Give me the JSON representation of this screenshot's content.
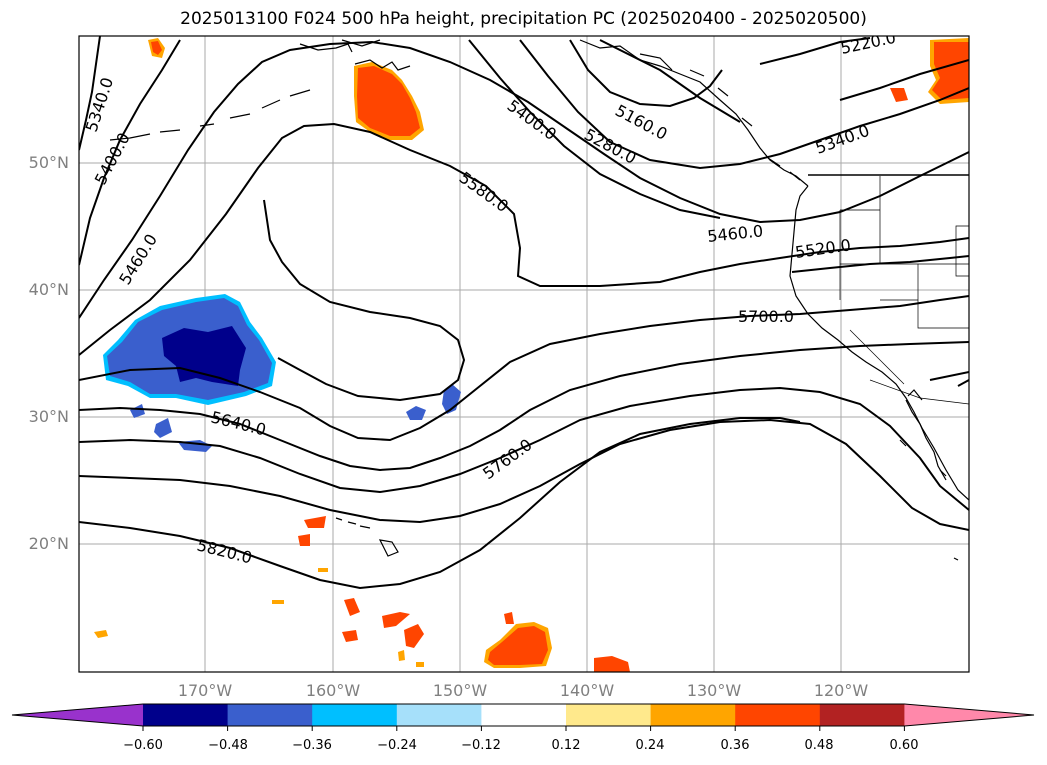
{
  "title": "2025013100 F024 500 hPa height, precipitation PC (2025020400 - 2025020500)",
  "latitude_labels": [
    "50°N",
    "40°N",
    "30°N",
    "20°N"
  ],
  "longitude_labels": [
    "170°W",
    "160°W",
    "150°W",
    "140°W",
    "130°W",
    "120°W"
  ],
  "contour_labels": [
    "5340.0",
    "5400.0",
    "5460.0",
    "5580.0",
    "5400.0",
    "5280.0",
    "5160.0",
    "5220.0",
    "5340.0",
    "5460.0",
    "5520.0",
    "5700.0",
    "5640.0",
    "5760.0",
    "5820.0"
  ],
  "colorbar": {
    "ticks": [
      "−0.60",
      "−0.48",
      "−0.36",
      "−0.24",
      "−0.12",
      "0.12",
      "0.24",
      "0.36",
      "0.48",
      "0.60"
    ],
    "colors": [
      "#9932cc",
      "#00008b",
      "#3a5fcd",
      "#00bfff",
      "#a6e0fa",
      "#ffffff",
      "#ffe98c",
      "#ffa500",
      "#ff4500",
      "#b22222",
      "#ff88aa"
    ]
  },
  "colors": {
    "negative_dark": "#00008b",
    "negative_mid": "#3a5fcd",
    "negative_light": "#00bfff",
    "positive_orange": "#ffa500",
    "positive_red": "#ff4500",
    "gridline": "#aaaaaa"
  }
}
